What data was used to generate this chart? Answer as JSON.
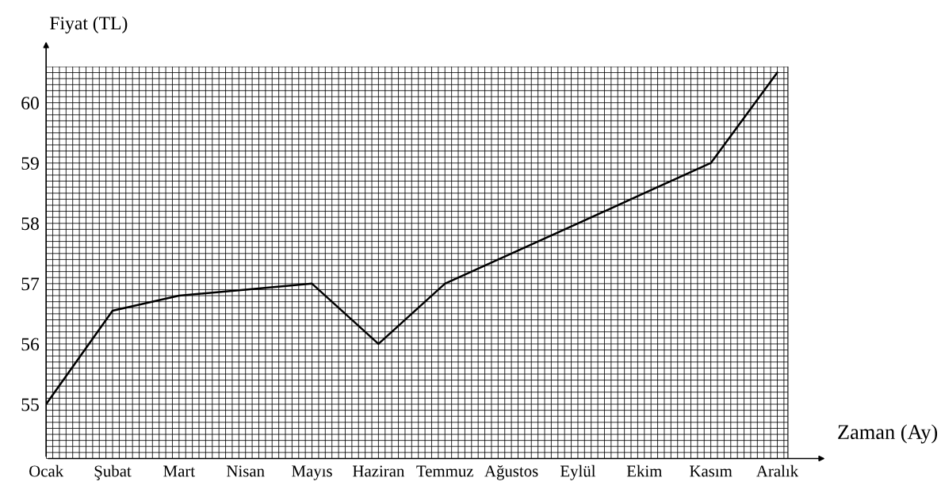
{
  "chart_data": {
    "type": "line",
    "xlabel": "Zaman (Ay)",
    "ylabel": "Fiyat (TL)",
    "categories": [
      "Ocak",
      "Şubat",
      "Mart",
      "Nisan",
      "Mayıs",
      "Haziran",
      "Temmuz",
      "Ağustos",
      "Eylül",
      "Ekim",
      "Kasım",
      "Aralık"
    ],
    "series": [
      {
        "color": "#000000",
        "values": [
          55,
          56.55,
          56.8,
          56.9,
          57,
          56,
          57,
          57.5,
          58,
          58.5,
          59,
          60.5
        ]
      }
    ],
    "ylim": [
      54.1,
      60.6
    ],
    "yticks": [
      55,
      56,
      57,
      58,
      59,
      60
    ],
    "grid": true,
    "marker": "none",
    "line_style": "solid"
  }
}
